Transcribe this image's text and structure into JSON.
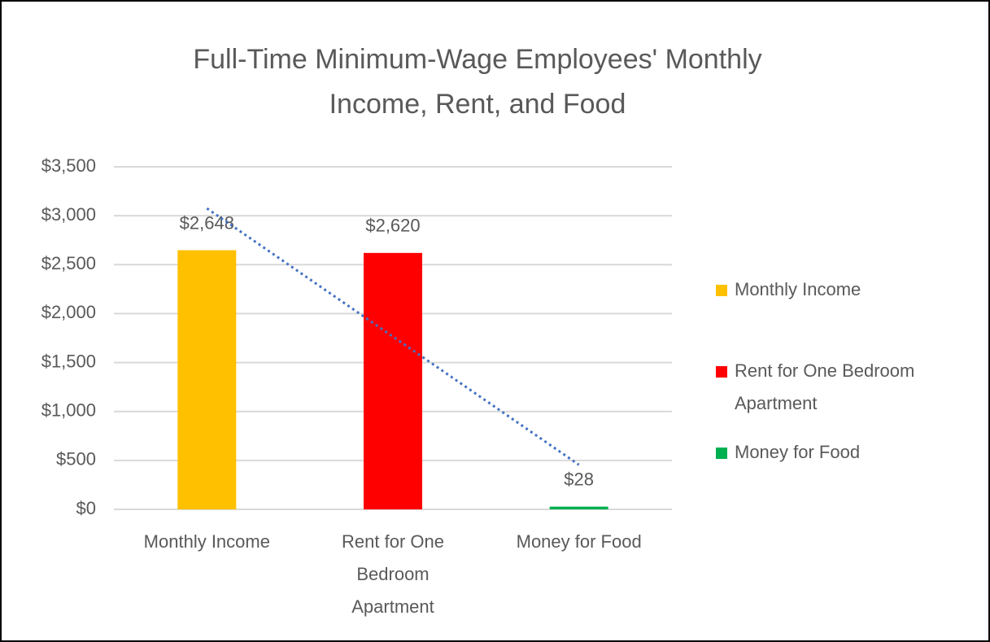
{
  "chart_data": {
    "type": "bar",
    "title": "Full-Time Minimum-Wage Employees' Monthly Income, Rent, and Food",
    "categories": [
      "Monthly Income",
      "Rent for One Bedroom Apartment",
      "Money for Food"
    ],
    "values": [
      2648,
      2620,
      28
    ],
    "value_labels": [
      "$2,648",
      "$2,620",
      "$28"
    ],
    "colors": [
      "#FFC000",
      "#FF0000",
      "#00B050"
    ],
    "ylim": [
      0,
      3500
    ],
    "yticks": [
      {
        "value": 0,
        "label": "$0"
      },
      {
        "value": 500,
        "label": "$500"
      },
      {
        "value": 1000,
        "label": "$1,000"
      },
      {
        "value": 1500,
        "label": "$1,500"
      },
      {
        "value": 2000,
        "label": "$2,000"
      },
      {
        "value": 2500,
        "label": "$2,500"
      },
      {
        "value": 3000,
        "label": "$3,000"
      },
      {
        "value": 3500,
        "label": "$3,500"
      }
    ],
    "grid": true,
    "legend": "right",
    "trendline": {
      "type": "linear",
      "color": "#4472C4"
    }
  }
}
